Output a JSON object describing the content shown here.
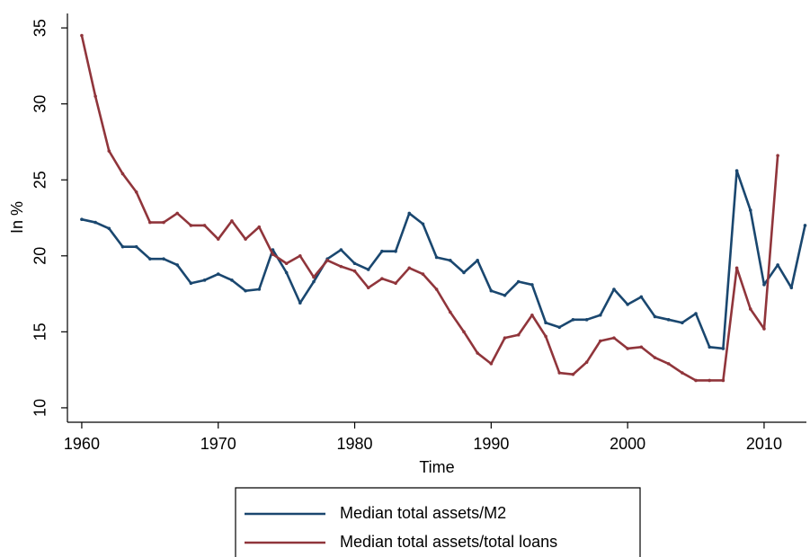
{
  "chart_data": {
    "type": "line",
    "x_label": "Time",
    "y_label": "In %",
    "x": [
      1960,
      1961,
      1962,
      1963,
      1964,
      1965,
      1966,
      1967,
      1968,
      1969,
      1970,
      1971,
      1972,
      1973,
      1974,
      1975,
      1976,
      1977,
      1978,
      1979,
      1980,
      1981,
      1982,
      1983,
      1984,
      1985,
      1986,
      1987,
      1988,
      1989,
      1990,
      1991,
      1992,
      1993,
      1994,
      1995,
      1996,
      1997,
      1998,
      1999,
      2000,
      2001,
      2002,
      2003,
      2004,
      2005,
      2006,
      2007,
      2008,
      2009,
      2010,
      2011,
      2012,
      2013
    ],
    "series": [
      {
        "name": "Median total assets/M2",
        "color": "#1a476f",
        "values": [
          22.4,
          22.2,
          21.8,
          20.6,
          20.6,
          19.8,
          19.8,
          19.4,
          18.2,
          18.4,
          18.8,
          18.4,
          17.7,
          17.8,
          20.4,
          18.9,
          16.9,
          18.3,
          19.8,
          20.4,
          19.5,
          19.1,
          20.3,
          20.3,
          22.8,
          22.1,
          19.9,
          19.7,
          18.9,
          19.7,
          17.7,
          17.4,
          18.3,
          18.1,
          15.6,
          15.3,
          15.8,
          15.8,
          16.1,
          17.8,
          16.8,
          17.3,
          16.0,
          15.8,
          15.6,
          16.2,
          14.0,
          13.9,
          25.6,
          23.0,
          18.1,
          19.4,
          17.9,
          22.0
        ]
      },
      {
        "name": "Median total assets/total loans",
        "color": "#90353b",
        "values": [
          34.5,
          30.5,
          26.9,
          25.4,
          24.2,
          22.2,
          22.2,
          22.8,
          22.0,
          22.0,
          21.1,
          22.3,
          21.1,
          21.9,
          20.1,
          19.5,
          20.0,
          18.6,
          19.7,
          19.3,
          19.0,
          17.9,
          18.5,
          18.2,
          19.2,
          18.8,
          17.8,
          16.3,
          15.0,
          13.6,
          12.9,
          14.6,
          14.8,
          16.1,
          14.7,
          12.3,
          12.2,
          13.0,
          14.4,
          14.6,
          13.9,
          14.0,
          13.3,
          12.9,
          12.3,
          11.8,
          11.8,
          11.8,
          19.2,
          16.5,
          15.2,
          26.6,
          null,
          null
        ]
      }
    ],
    "xlim": [
      1958.95,
      2013.1
    ],
    "ylim": [
      9.05,
      35.95
    ],
    "xticks": [
      1960,
      1970,
      1980,
      1990,
      2000,
      2010
    ],
    "yticks": [
      10,
      15,
      20,
      25,
      30,
      35
    ],
    "grid": false
  }
}
